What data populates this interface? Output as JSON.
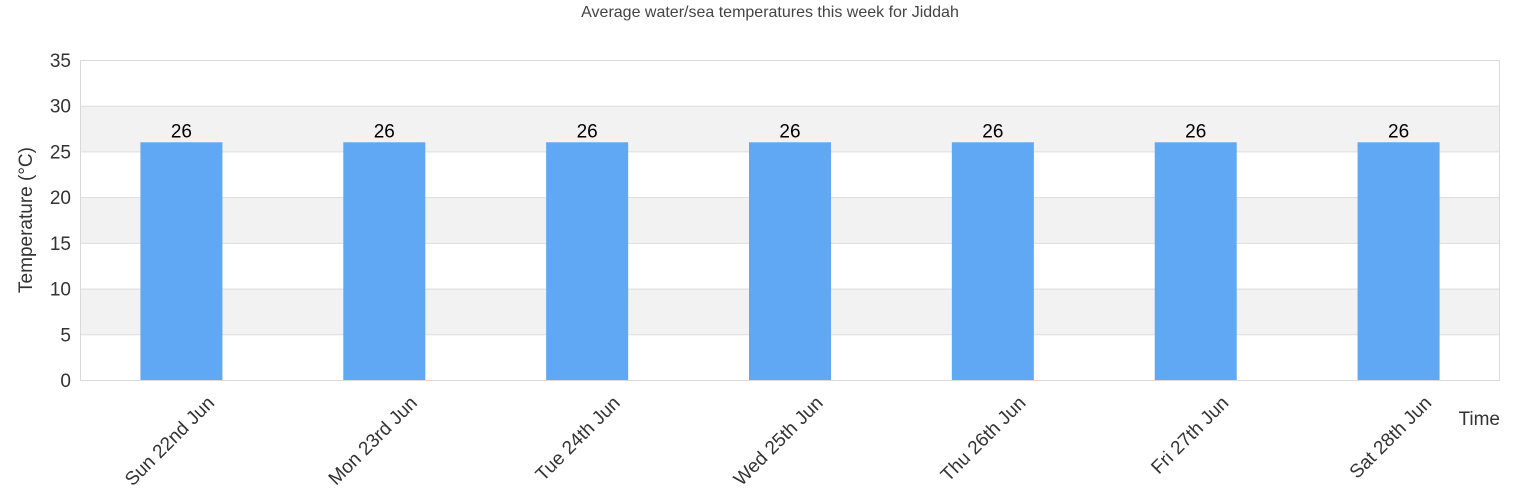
{
  "chart_data": {
    "type": "bar",
    "title": "Average water/sea temperatures this week for Jiddah",
    "xlabel": "Time",
    "ylabel": "Temperature (°C)",
    "categories": [
      "Sun 22nd Jun",
      "Mon 23rd Jun",
      "Tue 24th Jun",
      "Wed 25th Jun",
      "Thu 26th Jun",
      "Fri 27th Jun",
      "Sat 28th Jun"
    ],
    "values": [
      26,
      26,
      26,
      26,
      26,
      26,
      26
    ],
    "data_labels": [
      "26",
      "26",
      "26",
      "26",
      "26",
      "26",
      "26"
    ],
    "ylim": [
      0,
      35
    ],
    "yticks": [
      0,
      5,
      10,
      15,
      20,
      25,
      30,
      35
    ],
    "ytick_labels": [
      "0",
      "5",
      "10",
      "15",
      "20",
      "25",
      "30",
      "35"
    ],
    "grid": true,
    "grid_style": "alternating horizontal bands",
    "legend": "none",
    "colors": {
      "bar": "#60a8f4",
      "band": "#f2f2f2",
      "gridline": "#dddddd",
      "plot_border": "#d9d9d9"
    }
  }
}
